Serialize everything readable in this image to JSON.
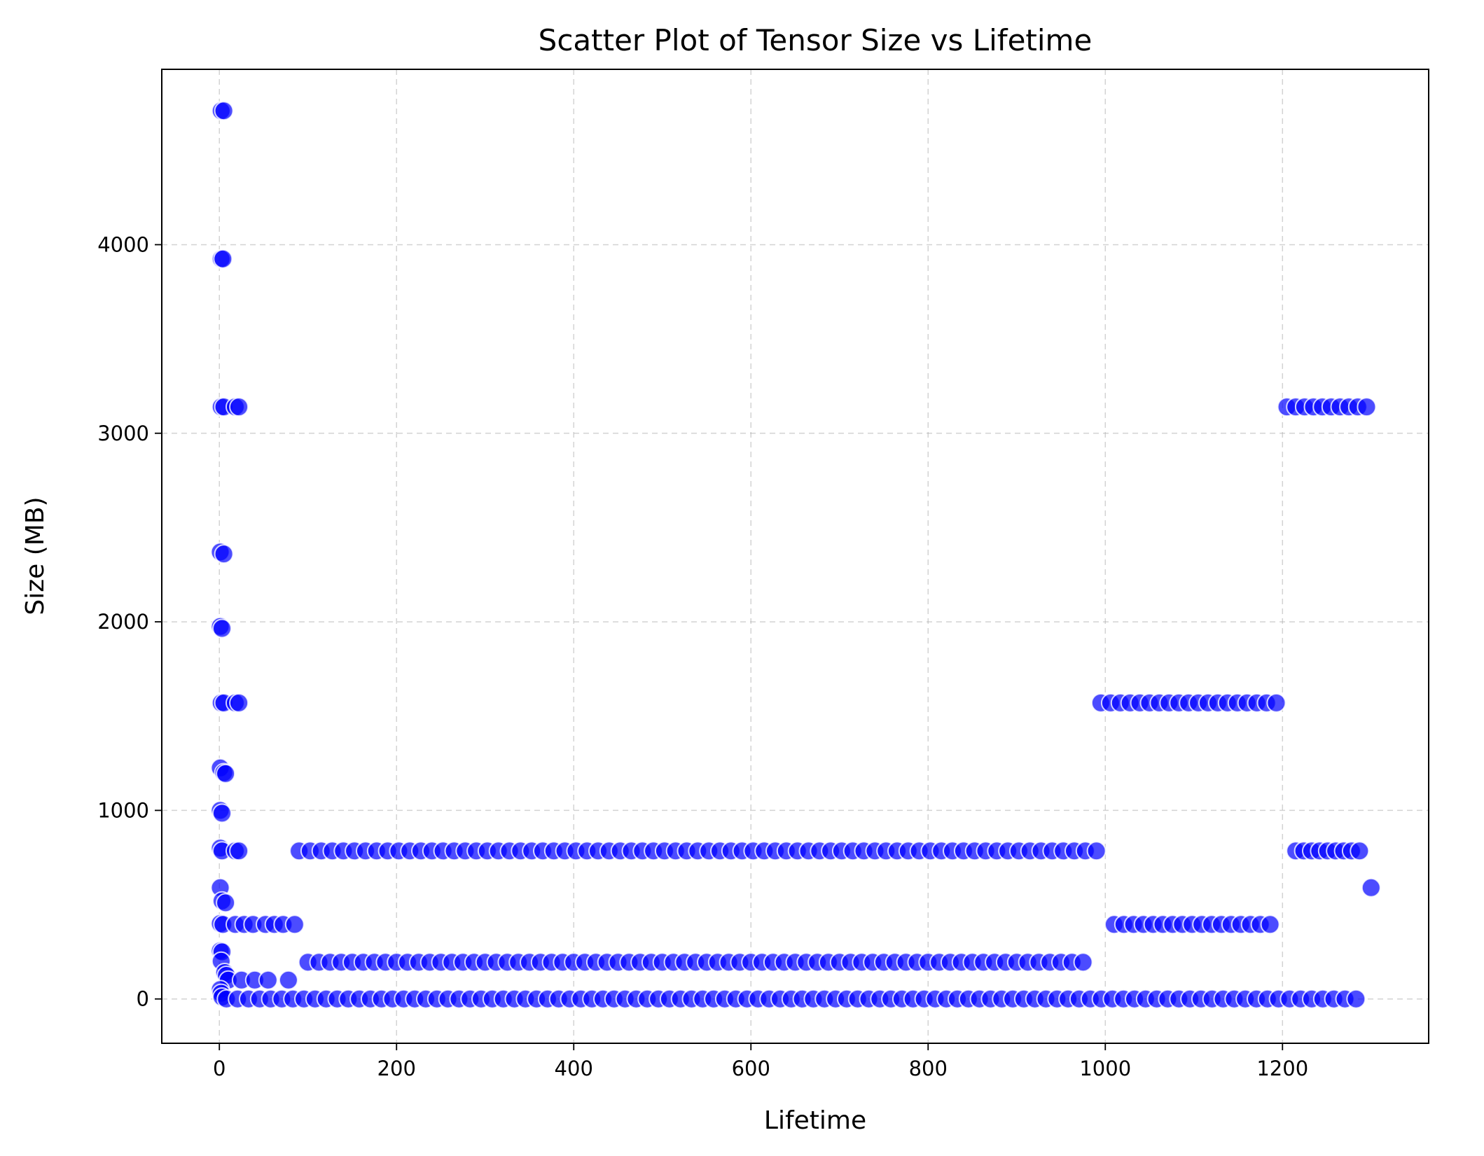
{
  "chart_data": {
    "type": "scatter",
    "title": "Scatter Plot of Tensor Size vs Lifetime",
    "xlabel": "Lifetime",
    "ylabel": "Size (MB)",
    "xlim": [
      -65,
      1365
    ],
    "ylim": [
      -235,
      4930
    ],
    "xticks": [
      0,
      200,
      400,
      600,
      800,
      1000,
      1200
    ],
    "yticks": [
      0,
      1000,
      2000,
      3000,
      4000
    ],
    "grid": true,
    "marker_color": "#0000ff",
    "marker_edge_color": "#ffffff",
    "series": [
      {
        "points": [
          [
            2,
            4710
          ],
          [
            5,
            4710
          ],
          [
            2,
            3925
          ],
          [
            4,
            3925
          ],
          [
            2,
            3140
          ],
          [
            5,
            3140
          ],
          [
            18,
            3140
          ],
          [
            22,
            3140
          ],
          [
            1,
            2370
          ],
          [
            5,
            2360
          ],
          [
            1,
            1975
          ],
          [
            3,
            1965
          ],
          [
            2,
            1570
          ],
          [
            5,
            1570
          ],
          [
            18,
            1570
          ],
          [
            22,
            1570
          ],
          [
            1,
            1225
          ],
          [
            5,
            1200
          ],
          [
            7,
            1195
          ],
          [
            1,
            1000
          ],
          [
            3,
            985
          ],
          [
            1,
            800
          ],
          [
            3,
            785
          ],
          [
            18,
            785
          ],
          [
            22,
            785
          ],
          [
            1,
            590
          ],
          [
            3,
            520
          ],
          [
            7,
            510
          ],
          [
            1,
            400
          ],
          [
            4,
            395
          ],
          [
            18,
            395
          ],
          [
            28,
            395
          ],
          [
            38,
            395
          ],
          [
            52,
            395
          ],
          [
            62,
            395
          ],
          [
            72,
            395
          ],
          [
            85,
            395
          ],
          [
            1,
            255
          ],
          [
            3,
            250
          ],
          [
            2,
            200
          ],
          [
            6,
            140
          ],
          [
            8,
            125
          ],
          [
            10,
            100
          ],
          [
            25,
            100
          ],
          [
            40,
            100
          ],
          [
            55,
            100
          ],
          [
            78,
            100
          ],
          [
            1,
            50
          ],
          [
            2,
            30
          ],
          [
            3,
            10
          ],
          [
            1300,
            590
          ]
        ]
      },
      {
        "name": "",
        "lines": [
          {
            "y": 785,
            "x_start": 90,
            "x_end": 1000,
            "step": 12.5
          },
          {
            "y": 195,
            "x_start": 100,
            "x_end": 985,
            "step": 12.5
          },
          {
            "y": 0,
            "x_start": 8,
            "x_end": 1295,
            "step": 12.5
          },
          {
            "y": 1570,
            "x_start": 995,
            "x_end": 1200,
            "step": 11
          },
          {
            "y": 395,
            "x_start": 1010,
            "x_end": 1195,
            "step": 11
          },
          {
            "y": 3140,
            "x_start": 1205,
            "x_end": 1295,
            "step": 10
          },
          {
            "y": 785,
            "x_start": 1215,
            "x_end": 1290,
            "step": 9
          }
        ]
      }
    ]
  }
}
